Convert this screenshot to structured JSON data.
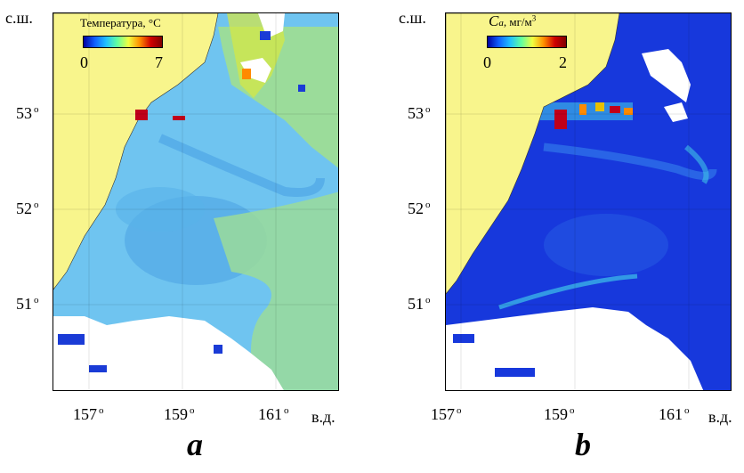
{
  "panels": [
    {
      "letter": "a",
      "colorbar": {
        "title": "Температура, °С",
        "min": "0",
        "max": "7",
        "colors": [
          "#0000a0",
          "#1060ff",
          "#20c0ff",
          "#60ffa0",
          "#f0ff40",
          "#ff9000",
          "#d00000",
          "#800000"
        ]
      },
      "lat_labels": [
        "53",
        "52",
        "51"
      ],
      "lon_labels": [
        "157",
        "159",
        "161"
      ],
      "north_label": "с.ш.",
      "east_label": "в.д.",
      "colors": {
        "land": "#f8f58c",
        "sea": "#6fc4f0",
        "sea_dark": "#4aa2e4",
        "front": "#9bdc9a",
        "warm": "#d8e83e",
        "hot": "#c0001a",
        "cloud": "#ffffff",
        "cold": "#1a3bd6"
      }
    },
    {
      "letter": "b",
      "colorbar": {
        "title_main": "C",
        "title_sub": "a",
        "title_unit": ", мг/м",
        "title_sup": "3",
        "min": "0",
        "max": "2",
        "colors": [
          "#0000a0",
          "#1060ff",
          "#20c0ff",
          "#60ffa0",
          "#f0ff40",
          "#ff9000",
          "#d00000",
          "#800000"
        ]
      },
      "lat_labels": [
        "53",
        "52",
        "51"
      ],
      "lon_labels": [
        "157",
        "159",
        "161"
      ],
      "north_label": "с.ш.",
      "east_label": "в.д.",
      "colors": {
        "land": "#f8f58c",
        "sea": "#1738dc",
        "sea_light": "#2e6fe8",
        "bloom": "#3fc3e8",
        "hot": "#c0001a",
        "cloud": "#ffffff"
      }
    }
  ]
}
